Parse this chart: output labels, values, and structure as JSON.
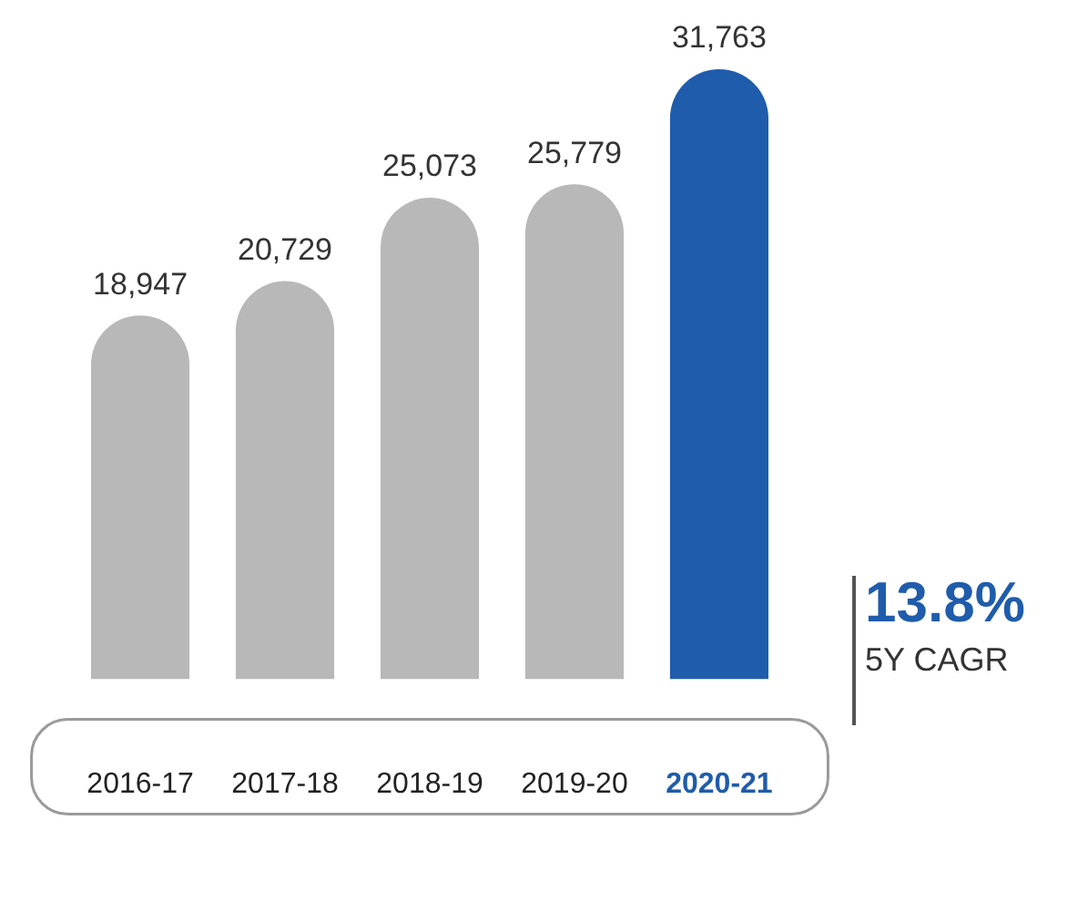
{
  "chart_data": {
    "type": "bar",
    "categories": [
      "2016-17",
      "2017-18",
      "2018-19",
      "2019-20",
      "2020-21"
    ],
    "values": [
      18947,
      20729,
      25073,
      25779,
      31763
    ],
    "colors": [
      "#b8b8b8",
      "#b8b8b8",
      "#b8b8b8",
      "#b8b8b8",
      "#1f5cab"
    ],
    "value_labels": [
      "18,947",
      "20,729",
      "25,073",
      "25,779",
      "31,763"
    ],
    "tick_labels": "x",
    "grid": false,
    "legend": false,
    "annotations": [
      "13.8%",
      "5Y CAGR"
    ]
  }
}
